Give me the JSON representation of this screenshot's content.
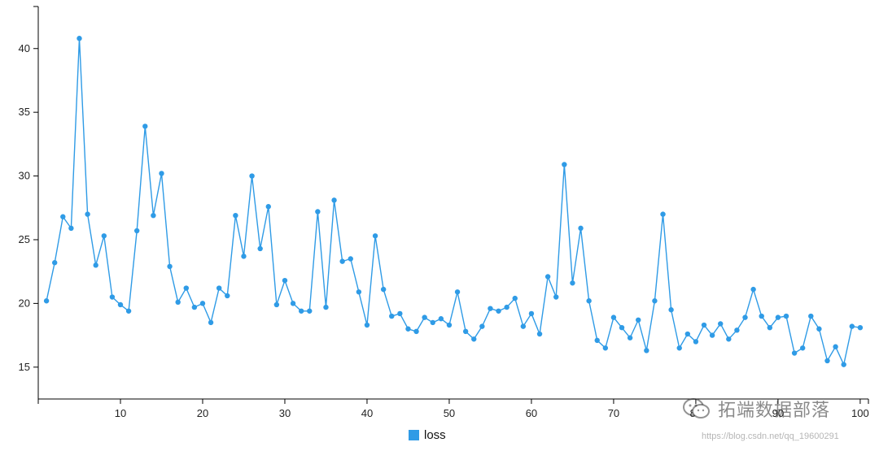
{
  "chart_data": {
    "type": "line",
    "title": "",
    "xlabel": "",
    "ylabel": "",
    "xlim": [
      0,
      101
    ],
    "ylim": [
      12.5,
      43.3
    ],
    "x_ticks": [
      10,
      20,
      30,
      40,
      50,
      60,
      70,
      80,
      90,
      100
    ],
    "y_ticks": [
      15,
      20,
      25,
      30,
      35,
      40
    ],
    "grid": false,
    "legend_position": "bottom-center",
    "series": [
      {
        "name": "loss",
        "color": "#2f9be6",
        "x": [
          1,
          2,
          3,
          4,
          5,
          6,
          7,
          8,
          9,
          10,
          11,
          12,
          13,
          14,
          15,
          16,
          17,
          18,
          19,
          20,
          21,
          22,
          23,
          24,
          25,
          26,
          27,
          28,
          29,
          30,
          31,
          32,
          33,
          34,
          35,
          36,
          37,
          38,
          39,
          40,
          41,
          42,
          43,
          44,
          45,
          46,
          47,
          48,
          49,
          50,
          51,
          52,
          53,
          54,
          55,
          56,
          57,
          58,
          59,
          60,
          61,
          62,
          63,
          64,
          65,
          66,
          67,
          68,
          69,
          70,
          71,
          72,
          73,
          74,
          75,
          76,
          77,
          78,
          79,
          80,
          81,
          82,
          83,
          84,
          85,
          86,
          87,
          88,
          89,
          90,
          91,
          92,
          93,
          94,
          95,
          96,
          97,
          98,
          99,
          100
        ],
        "values": [
          20.2,
          23.2,
          26.8,
          25.9,
          40.8,
          27.0,
          23.0,
          25.3,
          20.5,
          19.9,
          19.4,
          25.7,
          33.9,
          26.9,
          30.2,
          22.9,
          20.1,
          21.2,
          19.7,
          20.0,
          18.5,
          21.2,
          20.6,
          26.9,
          23.7,
          30.0,
          24.3,
          27.6,
          19.9,
          21.8,
          20.0,
          19.4,
          19.4,
          27.2,
          19.7,
          28.1,
          23.3,
          23.5,
          20.9,
          18.3,
          25.3,
          21.1,
          19.0,
          19.2,
          18.0,
          17.8,
          18.9,
          18.5,
          18.8,
          18.3,
          20.9,
          17.8,
          17.2,
          18.2,
          19.6,
          19.4,
          19.7,
          20.4,
          18.2,
          19.2,
          17.6,
          22.1,
          20.5,
          30.9,
          21.6,
          25.9,
          20.2,
          17.1,
          16.5,
          18.9,
          18.1,
          17.3,
          18.7,
          16.3,
          20.2,
          27.0,
          19.5,
          16.5,
          17.6,
          17.0,
          18.3,
          17.5,
          18.4,
          17.2,
          17.9,
          18.9,
          21.1,
          19.0,
          18.1,
          18.9,
          19.0,
          16.1,
          16.5,
          19.0,
          18.0,
          15.5,
          16.6,
          15.2,
          18.2,
          18.1
        ]
      }
    ]
  },
  "legend": {
    "label": "loss"
  },
  "watermark": {
    "text": "拓端数据部落",
    "url": "https://blog.csdn.net/qq_19600291"
  }
}
